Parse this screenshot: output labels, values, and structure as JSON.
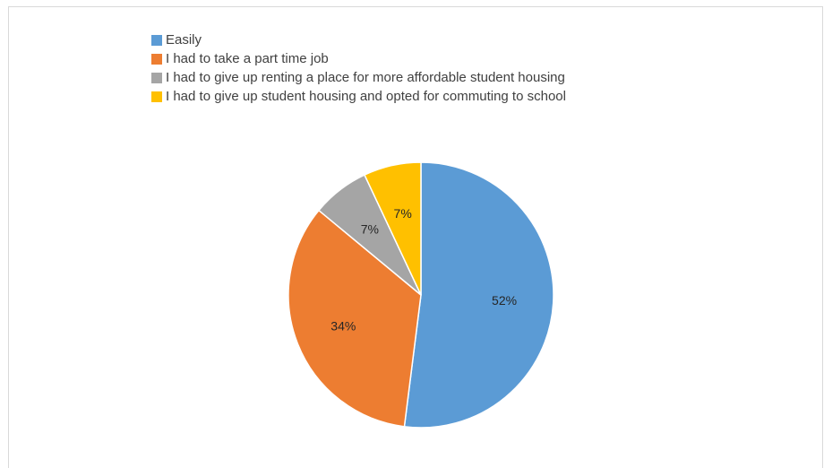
{
  "chart_data": {
    "type": "pie",
    "categories": [
      "Easily",
      "I had to take a part time job",
      "I had to give up renting a place for more affordable student housing",
      "I had to give up student housing and opted for commuting to school"
    ],
    "values": [
      52,
      34,
      7,
      7
    ],
    "labels": [
      "52%",
      "34%",
      "7%",
      "7%"
    ],
    "colors": [
      "#5b9bd5",
      "#ed7d31",
      "#a5a5a5",
      "#ffc000"
    ],
    "legend_position": "top"
  }
}
